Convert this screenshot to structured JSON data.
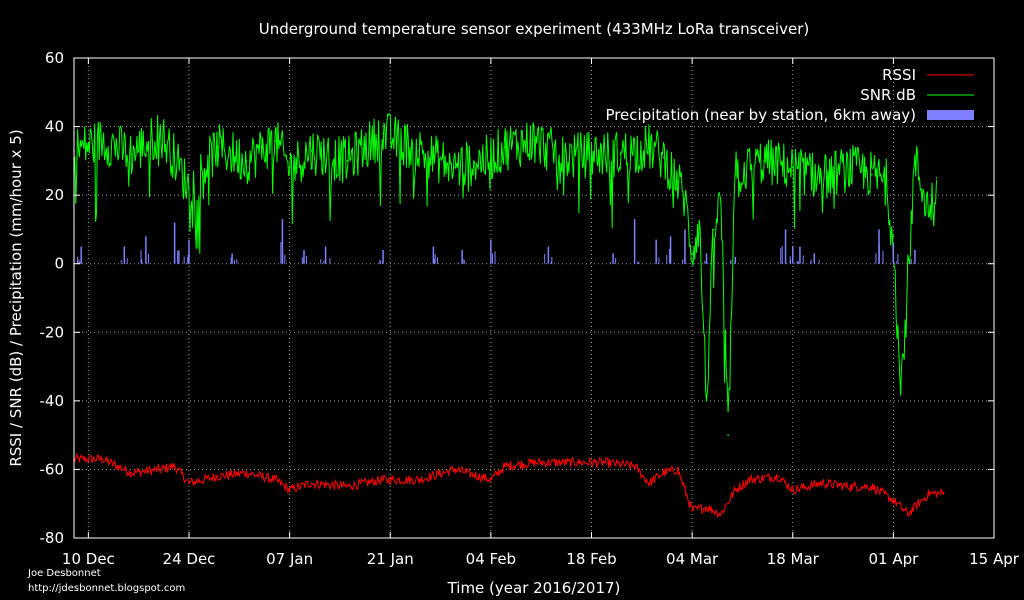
{
  "chart_data": {
    "type": "line",
    "title": "Underground temperature sensor experiment (433MHz LoRa transceiver)",
    "xlabel": "Time (year 2016/2017)",
    "ylabel": "RSSI / SNR (dB) / Precipitation (mm/hour x 5)",
    "xlim": [
      "2016-12-08",
      "2017-04-15"
    ],
    "ylim": [
      -80,
      60
    ],
    "x_ticks": [
      {
        "date": "2016-12-10",
        "label": "10 Dec"
      },
      {
        "date": "2016-12-24",
        "label": "24 Dec"
      },
      {
        "date": "2017-01-07",
        "label": "07 Jan"
      },
      {
        "date": "2017-01-21",
        "label": "21 Jan"
      },
      {
        "date": "2017-02-04",
        "label": "04 Feb"
      },
      {
        "date": "2017-02-18",
        "label": "18 Feb"
      },
      {
        "date": "2017-03-04",
        "label": "04 Mar"
      },
      {
        "date": "2017-03-18",
        "label": "18 Mar"
      },
      {
        "date": "2017-04-01",
        "label": "01 Apr"
      },
      {
        "date": "2017-04-15",
        "label": "15 Apr"
      }
    ],
    "y_ticks": [
      60,
      40,
      20,
      0,
      -20,
      -40,
      -60,
      -80
    ],
    "grid": true,
    "legend_position": "top-right",
    "series": [
      {
        "name": "RSSI",
        "color": "#ff0000",
        "style": "line",
        "x": [
          "2016-12-08",
          "2016-12-12",
          "2016-12-16",
          "2016-12-20",
          "2016-12-22",
          "2016-12-24",
          "2016-12-28",
          "2017-01-01",
          "2017-01-05",
          "2017-01-07",
          "2017-01-10",
          "2017-01-15",
          "2017-01-20",
          "2017-01-25",
          "2017-01-30",
          "2017-02-04",
          "2017-02-06",
          "2017-02-10",
          "2017-02-16",
          "2017-02-20",
          "2017-02-24",
          "2017-02-26",
          "2017-02-28",
          "2017-03-02",
          "2017-03-04",
          "2017-03-06",
          "2017-03-08",
          "2017-03-10",
          "2017-03-12",
          "2017-03-16",
          "2017-03-18",
          "2017-03-22",
          "2017-03-26",
          "2017-03-29",
          "2017-04-01",
          "2017-04-03",
          "2017-04-06",
          "2017-04-08"
        ],
        "values": [
          -57,
          -57,
          -61,
          -60,
          -59,
          -64,
          -62,
          -61,
          -63,
          -66,
          -64,
          -65,
          -63,
          -63,
          -60,
          -63,
          -59,
          -58,
          -58,
          -58,
          -59,
          -64,
          -61,
          -60,
          -72,
          -71,
          -73,
          -66,
          -63,
          -62,
          -66,
          -64,
          -65,
          -65,
          -69,
          -73,
          -67,
          -67
        ]
      },
      {
        "name": "SNR dB",
        "color": "#00ff00",
        "style": "line",
        "x": [
          "2016-12-08",
          "2016-12-12",
          "2016-12-16",
          "2016-12-20",
          "2016-12-22",
          "2016-12-24",
          "2016-12-28",
          "2017-01-01",
          "2017-01-05",
          "2017-01-07",
          "2017-01-10",
          "2017-01-15",
          "2017-01-20",
          "2017-01-25",
          "2017-01-30",
          "2017-02-04",
          "2017-02-06",
          "2017-02-10",
          "2017-02-14",
          "2017-02-18",
          "2017-02-22",
          "2017-02-26",
          "2017-02-28",
          "2017-03-02",
          "2017-03-03",
          "2017-03-04",
          "2017-03-05",
          "2017-03-06",
          "2017-03-07",
          "2017-03-08",
          "2017-03-09",
          "2017-03-10",
          "2017-03-14",
          "2017-03-18",
          "2017-03-22",
          "2017-03-26",
          "2017-03-29",
          "2017-03-31",
          "2017-04-01",
          "2017-04-02",
          "2017-04-04",
          "2017-04-06",
          "2017-04-07"
        ],
        "values": [
          33,
          36,
          32,
          38,
          31,
          22,
          34,
          30,
          36,
          28,
          33,
          30,
          38,
          33,
          28,
          31,
          34,
          36,
          31,
          32,
          32,
          34,
          31,
          24,
          19,
          3,
          12,
          -40,
          10,
          18,
          -50,
          26,
          30,
          28,
          25,
          28,
          26,
          24,
          8,
          -38,
          30,
          15,
          25
        ]
      },
      {
        "name": "Precipitation (near by station, 6km away)",
        "color": "#8080ff",
        "style": "impulses",
        "x": [
          "2016-12-09",
          "2016-12-15",
          "2016-12-18",
          "2016-12-22",
          "2016-12-24",
          "2016-12-30",
          "2017-01-06",
          "2017-01-09",
          "2017-01-12",
          "2017-01-20",
          "2017-01-27",
          "2017-01-31",
          "2017-02-04",
          "2017-02-12",
          "2017-02-21",
          "2017-02-24",
          "2017-02-27",
          "2017-03-01",
          "2017-03-03",
          "2017-03-06",
          "2017-03-10",
          "2017-03-17",
          "2017-03-18",
          "2017-03-19",
          "2017-03-21",
          "2017-03-30",
          "2017-04-01",
          "2017-04-04"
        ],
        "values": [
          5,
          5,
          8,
          12,
          7,
          3,
          13,
          4,
          5,
          4,
          5,
          4,
          7,
          5,
          3,
          13,
          7,
          8,
          10,
          3,
          2,
          10,
          5,
          5,
          3,
          10,
          6,
          4
        ]
      }
    ]
  },
  "credits": {
    "author": "Joe Desbonnet",
    "url": "http://jdesbonnet.blogspot.com"
  }
}
